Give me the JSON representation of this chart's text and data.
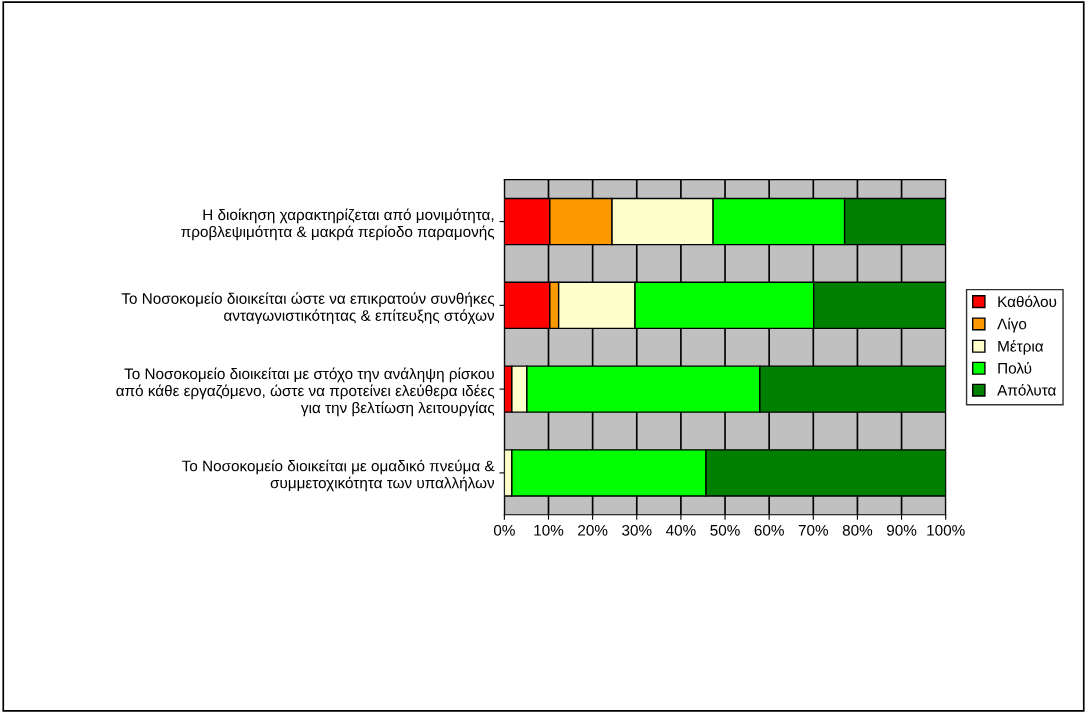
{
  "chart_data": {
    "type": "bar",
    "orientation": "horizontal",
    "stacked": true,
    "categories": [
      "Η διοίκηση χαρακτηρίζεται από μονιμότητα,\nπροβλεψιμότητα & μακρά περίοδο παραμονής",
      "Το Νοσοκομείο διοικείται ώστε να επικρατούν συνθήκες\nανταγωνιστικότητας & επίτευξης στόχων",
      "Το Νοσοκομείο διοικείται με στόχο την ανάληψη ρίσκου\nαπό κάθε εργαζόμενο, ώστε να προτείνει ελεύθερα ιδέες\nγια την βελτίωση λειτουργίας",
      "Το Νοσοκομείο διοικείται με ομαδικό πνεύμα &\nσυμμετοχικότητα των υπαλλήλων"
    ],
    "series": [
      {
        "name": "Καθόλου",
        "color": "#ff0000",
        "values": [
          10.3,
          10.3,
          1.7,
          0
        ]
      },
      {
        "name": "Λίγο",
        "color": "#ff9900",
        "values": [
          14.1,
          2.0,
          0,
          0
        ]
      },
      {
        "name": "Μέτρια",
        "color": "#ffffcc",
        "values": [
          22.9,
          17.3,
          3.4,
          1.7
        ]
      },
      {
        "name": "Πολύ",
        "color": "#00ff00",
        "values": [
          29.8,
          40.5,
          52.8,
          44.0
        ]
      },
      {
        "name": "Απόλυτα",
        "color": "#008000",
        "values": [
          22.9,
          29.9,
          42.1,
          54.3
        ]
      }
    ],
    "xlim": [
      0,
      100
    ],
    "xticks": [
      {
        "value": 0,
        "label": "0%"
      },
      {
        "value": 10,
        "label": "10%"
      },
      {
        "value": 20,
        "label": "20%"
      },
      {
        "value": 30,
        "label": "30%"
      },
      {
        "value": 40,
        "label": "40%"
      },
      {
        "value": 50,
        "label": "50%"
      },
      {
        "value": 60,
        "label": "60%"
      },
      {
        "value": 70,
        "label": "70%"
      },
      {
        "value": 80,
        "label": "80%"
      },
      {
        "value": 90,
        "label": "90%"
      },
      {
        "value": 100,
        "label": "100%"
      }
    ],
    "grid": "x",
    "legend": "right"
  }
}
